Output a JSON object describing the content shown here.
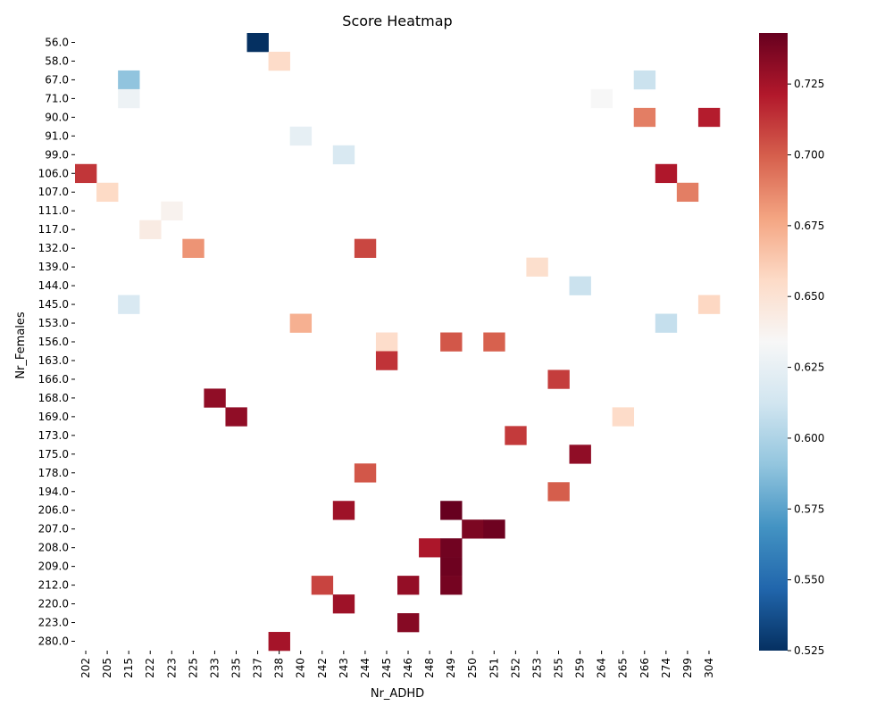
{
  "chart_data": {
    "type": "heatmap",
    "title": "Score Heatmap",
    "xlabel": "Nr_ADHD",
    "ylabel": "Nr_Females",
    "x_categories": [
      "202",
      "205",
      "215",
      "222",
      "223",
      "225",
      "233",
      "235",
      "237",
      "238",
      "240",
      "242",
      "243",
      "244",
      "245",
      "246",
      "248",
      "249",
      "250",
      "251",
      "252",
      "253",
      "255",
      "259",
      "264",
      "265",
      "266",
      "274",
      "299",
      "304"
    ],
    "y_categories": [
      "56.0",
      "58.0",
      "67.0",
      "71.0",
      "90.0",
      "91.0",
      "99.0",
      "106.0",
      "107.0",
      "111.0",
      "117.0",
      "132.0",
      "139.0",
      "144.0",
      "145.0",
      "153.0",
      "156.0",
      "163.0",
      "166.0",
      "168.0",
      "169.0",
      "173.0",
      "175.0",
      "178.0",
      "194.0",
      "206.0",
      "207.0",
      "208.0",
      "209.0",
      "212.0",
      "220.0",
      "223.0",
      "280.0"
    ],
    "colormap": "RdBu_r",
    "color_range": [
      0.525,
      0.743
    ],
    "colorbar_ticks": [
      "0.525",
      "0.550",
      "0.575",
      "0.600",
      "0.625",
      "0.650",
      "0.675",
      "0.700",
      "0.725"
    ],
    "cells": [
      {
        "y": "56.0",
        "x": "237",
        "value": 0.525
      },
      {
        "y": "58.0",
        "x": "238",
        "value": 0.655
      },
      {
        "y": "67.0",
        "x": "215",
        "value": 0.59
      },
      {
        "y": "67.0",
        "x": "266",
        "value": 0.61
      },
      {
        "y": "71.0",
        "x": "215",
        "value": 0.628
      },
      {
        "y": "71.0",
        "x": "264",
        "value": 0.634
      },
      {
        "y": "90.0",
        "x": "266",
        "value": 0.69
      },
      {
        "y": "90.0",
        "x": "304",
        "value": 0.72
      },
      {
        "y": "91.0",
        "x": "240",
        "value": 0.624
      },
      {
        "y": "99.0",
        "x": "243",
        "value": 0.617
      },
      {
        "y": "106.0",
        "x": "202",
        "value": 0.712
      },
      {
        "y": "106.0",
        "x": "274",
        "value": 0.722
      },
      {
        "y": "107.0",
        "x": "205",
        "value": 0.656
      },
      {
        "y": "107.0",
        "x": "299",
        "value": 0.69
      },
      {
        "y": "111.0",
        "x": "223",
        "value": 0.638
      },
      {
        "y": "117.0",
        "x": "222",
        "value": 0.643
      },
      {
        "y": "132.0",
        "x": "225",
        "value": 0.683
      },
      {
        "y": "132.0",
        "x": "244",
        "value": 0.707
      },
      {
        "y": "139.0",
        "x": "253",
        "value": 0.653
      },
      {
        "y": "144.0",
        "x": "259",
        "value": 0.61
      },
      {
        "y": "145.0",
        "x": "215",
        "value": 0.617
      },
      {
        "y": "145.0",
        "x": "304",
        "value": 0.657
      },
      {
        "y": "153.0",
        "x": "240",
        "value": 0.673
      },
      {
        "y": "153.0",
        "x": "274",
        "value": 0.608
      },
      {
        "y": "156.0",
        "x": "245",
        "value": 0.654
      },
      {
        "y": "156.0",
        "x": "249",
        "value": 0.702
      },
      {
        "y": "156.0",
        "x": "251",
        "value": 0.699
      },
      {
        "y": "163.0",
        "x": "245",
        "value": 0.713
      },
      {
        "y": "166.0",
        "x": "255",
        "value": 0.71
      },
      {
        "y": "168.0",
        "x": "233",
        "value": 0.731
      },
      {
        "y": "169.0",
        "x": "235",
        "value": 0.731
      },
      {
        "y": "169.0",
        "x": "265",
        "value": 0.655
      },
      {
        "y": "173.0",
        "x": "252",
        "value": 0.711
      },
      {
        "y": "175.0",
        "x": "259",
        "value": 0.731
      },
      {
        "y": "178.0",
        "x": "244",
        "value": 0.702
      },
      {
        "y": "194.0",
        "x": "255",
        "value": 0.7
      },
      {
        "y": "206.0",
        "x": "243",
        "value": 0.727
      },
      {
        "y": "206.0",
        "x": "249",
        "value": 0.743
      },
      {
        "y": "207.0",
        "x": "250",
        "value": 0.737
      },
      {
        "y": "207.0",
        "x": "251",
        "value": 0.741
      },
      {
        "y": "208.0",
        "x": "248",
        "value": 0.723
      },
      {
        "y": "208.0",
        "x": "249",
        "value": 0.74
      },
      {
        "y": "209.0",
        "x": "249",
        "value": 0.741
      },
      {
        "y": "212.0",
        "x": "242",
        "value": 0.708
      },
      {
        "y": "212.0",
        "x": "246",
        "value": 0.73
      },
      {
        "y": "212.0",
        "x": "249",
        "value": 0.739
      },
      {
        "y": "220.0",
        "x": "243",
        "value": 0.727
      },
      {
        "y": "223.0",
        "x": "246",
        "value": 0.734
      },
      {
        "y": "280.0",
        "x": "238",
        "value": 0.725
      }
    ]
  }
}
